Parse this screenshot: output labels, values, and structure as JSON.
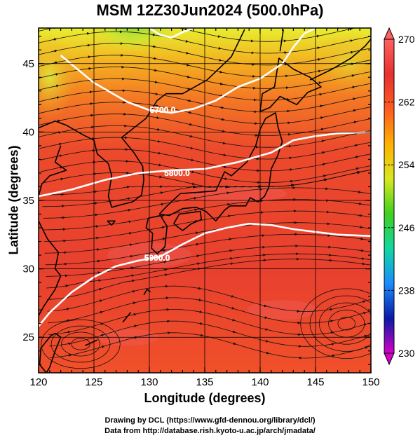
{
  "title": "MSM 12Z30Jun2024 (500.0hPa)",
  "credit": {
    "line1": "Drawing by DCL (https://www.gfd-dennou.org/library/dcl/)",
    "line2": "Data from http://database.rish.kyoto-u.ac.jp/arch/jmadata/"
  },
  "chart_data": {
    "type": "heatmap",
    "title": "MSM 12Z30Jun2024 (500.0hPa)",
    "xlabel": "Longitude (degrees)",
    "ylabel": "Latitude  (degrees)",
    "xlim": [
      120,
      150
    ],
    "ylim": [
      22.4,
      47.6
    ],
    "xticks": [
      120,
      125,
      130,
      135,
      140,
      145,
      150
    ],
    "yticks": [
      25,
      30,
      35,
      40,
      45
    ],
    "grid": true,
    "colorbar": {
      "min": 230,
      "max": 270,
      "ticks": [
        230,
        238,
        246,
        254,
        262,
        270
      ],
      "colors": [
        "#d400c8",
        "#0a1aa8",
        "#1a8cff",
        "#10d8a0",
        "#40d020",
        "#d8e820",
        "#ffb000",
        "#ff5a20",
        "#e83030",
        "#ff6060"
      ],
      "extend": "both"
    },
    "field_approx": [
      {
        "lon": 120,
        "lat": 47,
        "value": 262
      },
      {
        "lon": 130,
        "lat": 47,
        "value": 258
      },
      {
        "lon": 135,
        "lat": 44,
        "value": 264
      },
      {
        "lon": 125,
        "lat": 40,
        "value": 266
      },
      {
        "lon": 135,
        "lat": 37,
        "value": 268
      },
      {
        "lon": 145,
        "lat": 42,
        "value": 263
      },
      {
        "lon": 130,
        "lat": 30,
        "value": 268
      },
      {
        "lon": 145,
        "lat": 27,
        "value": 267
      }
    ],
    "contours": [
      {
        "label": "5700.0",
        "points": [
          [
            122,
            45.6
          ],
          [
            125,
            43.6
          ],
          [
            128,
            42.2
          ],
          [
            130,
            41.6
          ],
          [
            132,
            41.4
          ],
          [
            134,
            41.7
          ],
          [
            136,
            42.3
          ],
          [
            138,
            43.3
          ],
          [
            140,
            43.9
          ],
          [
            142,
            45.0
          ],
          [
            143,
            46.2
          ],
          [
            144,
            47.2
          ],
          [
            145,
            47.6
          ]
        ]
      },
      {
        "label": "5700.0",
        "points": [
          [
            130,
            47.6
          ],
          [
            131,
            47.1
          ],
          [
            132,
            46.9
          ],
          [
            133,
            47.3
          ],
          [
            134,
            47.6
          ]
        ]
      },
      {
        "label": "5800.0",
        "points": [
          [
            120,
            35.3
          ],
          [
            123,
            35.8
          ],
          [
            126,
            36.5
          ],
          [
            129,
            37.0
          ],
          [
            132,
            37.2
          ],
          [
            135,
            37.3
          ],
          [
            138,
            37.8
          ],
          [
            141,
            38.5
          ],
          [
            143,
            39.4
          ],
          [
            145,
            39.7
          ],
          [
            147,
            39.9
          ],
          [
            150,
            40.0
          ]
        ]
      },
      {
        "label": "5900.0",
        "points": [
          [
            120,
            25.8
          ],
          [
            121,
            26.8
          ],
          [
            123,
            28.3
          ],
          [
            125,
            29.4
          ],
          [
            127,
            30.2
          ],
          [
            129,
            30.6
          ],
          [
            131,
            30.9
          ],
          [
            133,
            31.8
          ],
          [
            135,
            32.6
          ],
          [
            137,
            33.0
          ],
          [
            139,
            33.3
          ],
          [
            141,
            33.2
          ],
          [
            143,
            32.9
          ],
          [
            145,
            32.7
          ],
          [
            147,
            32.5
          ],
          [
            150,
            32.4
          ]
        ]
      }
    ],
    "contour_labels": [
      {
        "text": "5700.0",
        "lon": 131.2,
        "lat": 41.6
      },
      {
        "text": "5800.0",
        "lon": 132.5,
        "lat": 37.0
      },
      {
        "text": "5900.0",
        "lon": 130.7,
        "lat": 30.8
      }
    ]
  }
}
